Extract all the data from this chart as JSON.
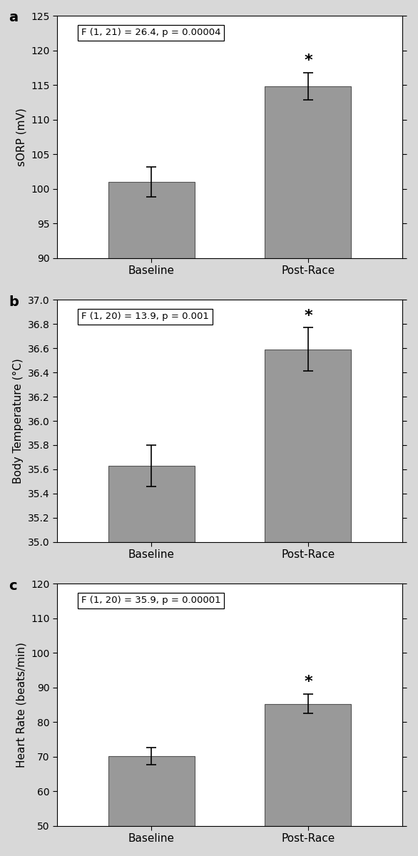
{
  "panels": [
    {
      "label": "a",
      "ylabel": "sORP (mV)",
      "ylim": [
        90,
        125
      ],
      "yticks": [
        90,
        95,
        100,
        105,
        110,
        115,
        120,
        125
      ],
      "categories": [
        "Baseline",
        "Post-Race"
      ],
      "values": [
        101.0,
        114.8
      ],
      "errors": [
        2.2,
        2.0
      ],
      "stat_text": "F (1, 21) = 26.4, p = 0.00004",
      "sig_bar_index": 1
    },
    {
      "label": "b",
      "ylabel": "Body Temperature (°C)",
      "ylim": [
        35.0,
        37.0
      ],
      "yticks": [
        35.0,
        35.2,
        35.4,
        35.6,
        35.8,
        36.0,
        36.2,
        36.4,
        36.6,
        36.8,
        37.0
      ],
      "categories": [
        "Baseline",
        "Post-Race"
      ],
      "values": [
        35.63,
        36.59
      ],
      "errors": [
        0.17,
        0.18
      ],
      "stat_text": "F (1, 20) = 13.9, p = 0.001",
      "sig_bar_index": 1
    },
    {
      "label": "c",
      "ylabel": "Heart Rate (beats/min)",
      "ylim": [
        50,
        120
      ],
      "yticks": [
        50,
        60,
        70,
        80,
        90,
        100,
        110,
        120
      ],
      "categories": [
        "Baseline",
        "Post-Race"
      ],
      "values": [
        70.2,
        85.3
      ],
      "errors": [
        2.5,
        2.8
      ],
      "stat_text": "F (1, 20) = 35.9, p = 0.00001",
      "sig_bar_index": 1
    }
  ],
  "bar_color": "#999999",
  "bar_edgecolor": "#555555",
  "plot_bg": "#ffffff",
  "fig_bg": "#d8d8d8"
}
